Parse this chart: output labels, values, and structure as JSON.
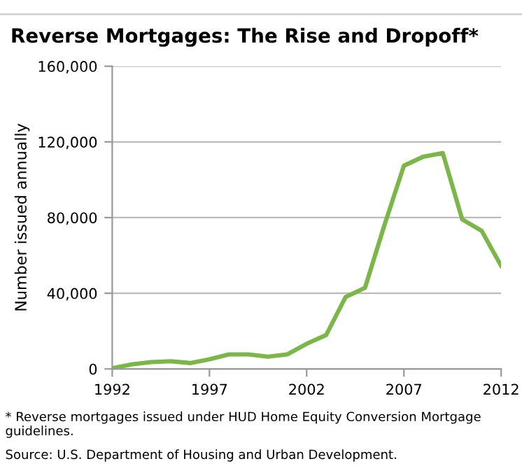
{
  "chart_data": {
    "type": "line",
    "title": "Reverse Mortgages: The Rise and Dropoff*",
    "ylabel": "Number issued annually",
    "x": [
      1992,
      1993,
      1994,
      1995,
      1996,
      1997,
      1998,
      1999,
      2000,
      2001,
      2002,
      2003,
      2004,
      2005,
      2006,
      2007,
      2008,
      2009,
      2010,
      2011,
      2012
    ],
    "series": [
      {
        "color": "#7ab648",
        "values": [
          400,
          2400,
          3600,
          4100,
          3100,
          5100,
          7700,
          7700,
          6500,
          7700,
          13300,
          17900,
          38000,
          42900,
          76000,
          107400,
          112200,
          114100,
          79000,
          73000,
          54500
        ]
      }
    ],
    "xlim": [
      1992,
      2012
    ],
    "xticks": [
      1992,
      1997,
      2002,
      2007,
      2012
    ],
    "ylim": [
      0,
      160000
    ],
    "yticks": [
      {
        "value": 0,
        "label": "0"
      },
      {
        "value": 40000,
        "label": "40,000"
      },
      {
        "value": 80000,
        "label": "80,000"
      },
      {
        "value": 120000,
        "label": "120,000"
      },
      {
        "value": 160000,
        "label": "160,000"
      }
    ],
    "grid": "y",
    "marker": "none",
    "line_style": "solid",
    "annotations": [
      "* Reverse mortgages issued under HUD Home Equity Conversion Mortgage guidelines.",
      "Source: U.S. Department of Housing and Urban Development."
    ]
  }
}
